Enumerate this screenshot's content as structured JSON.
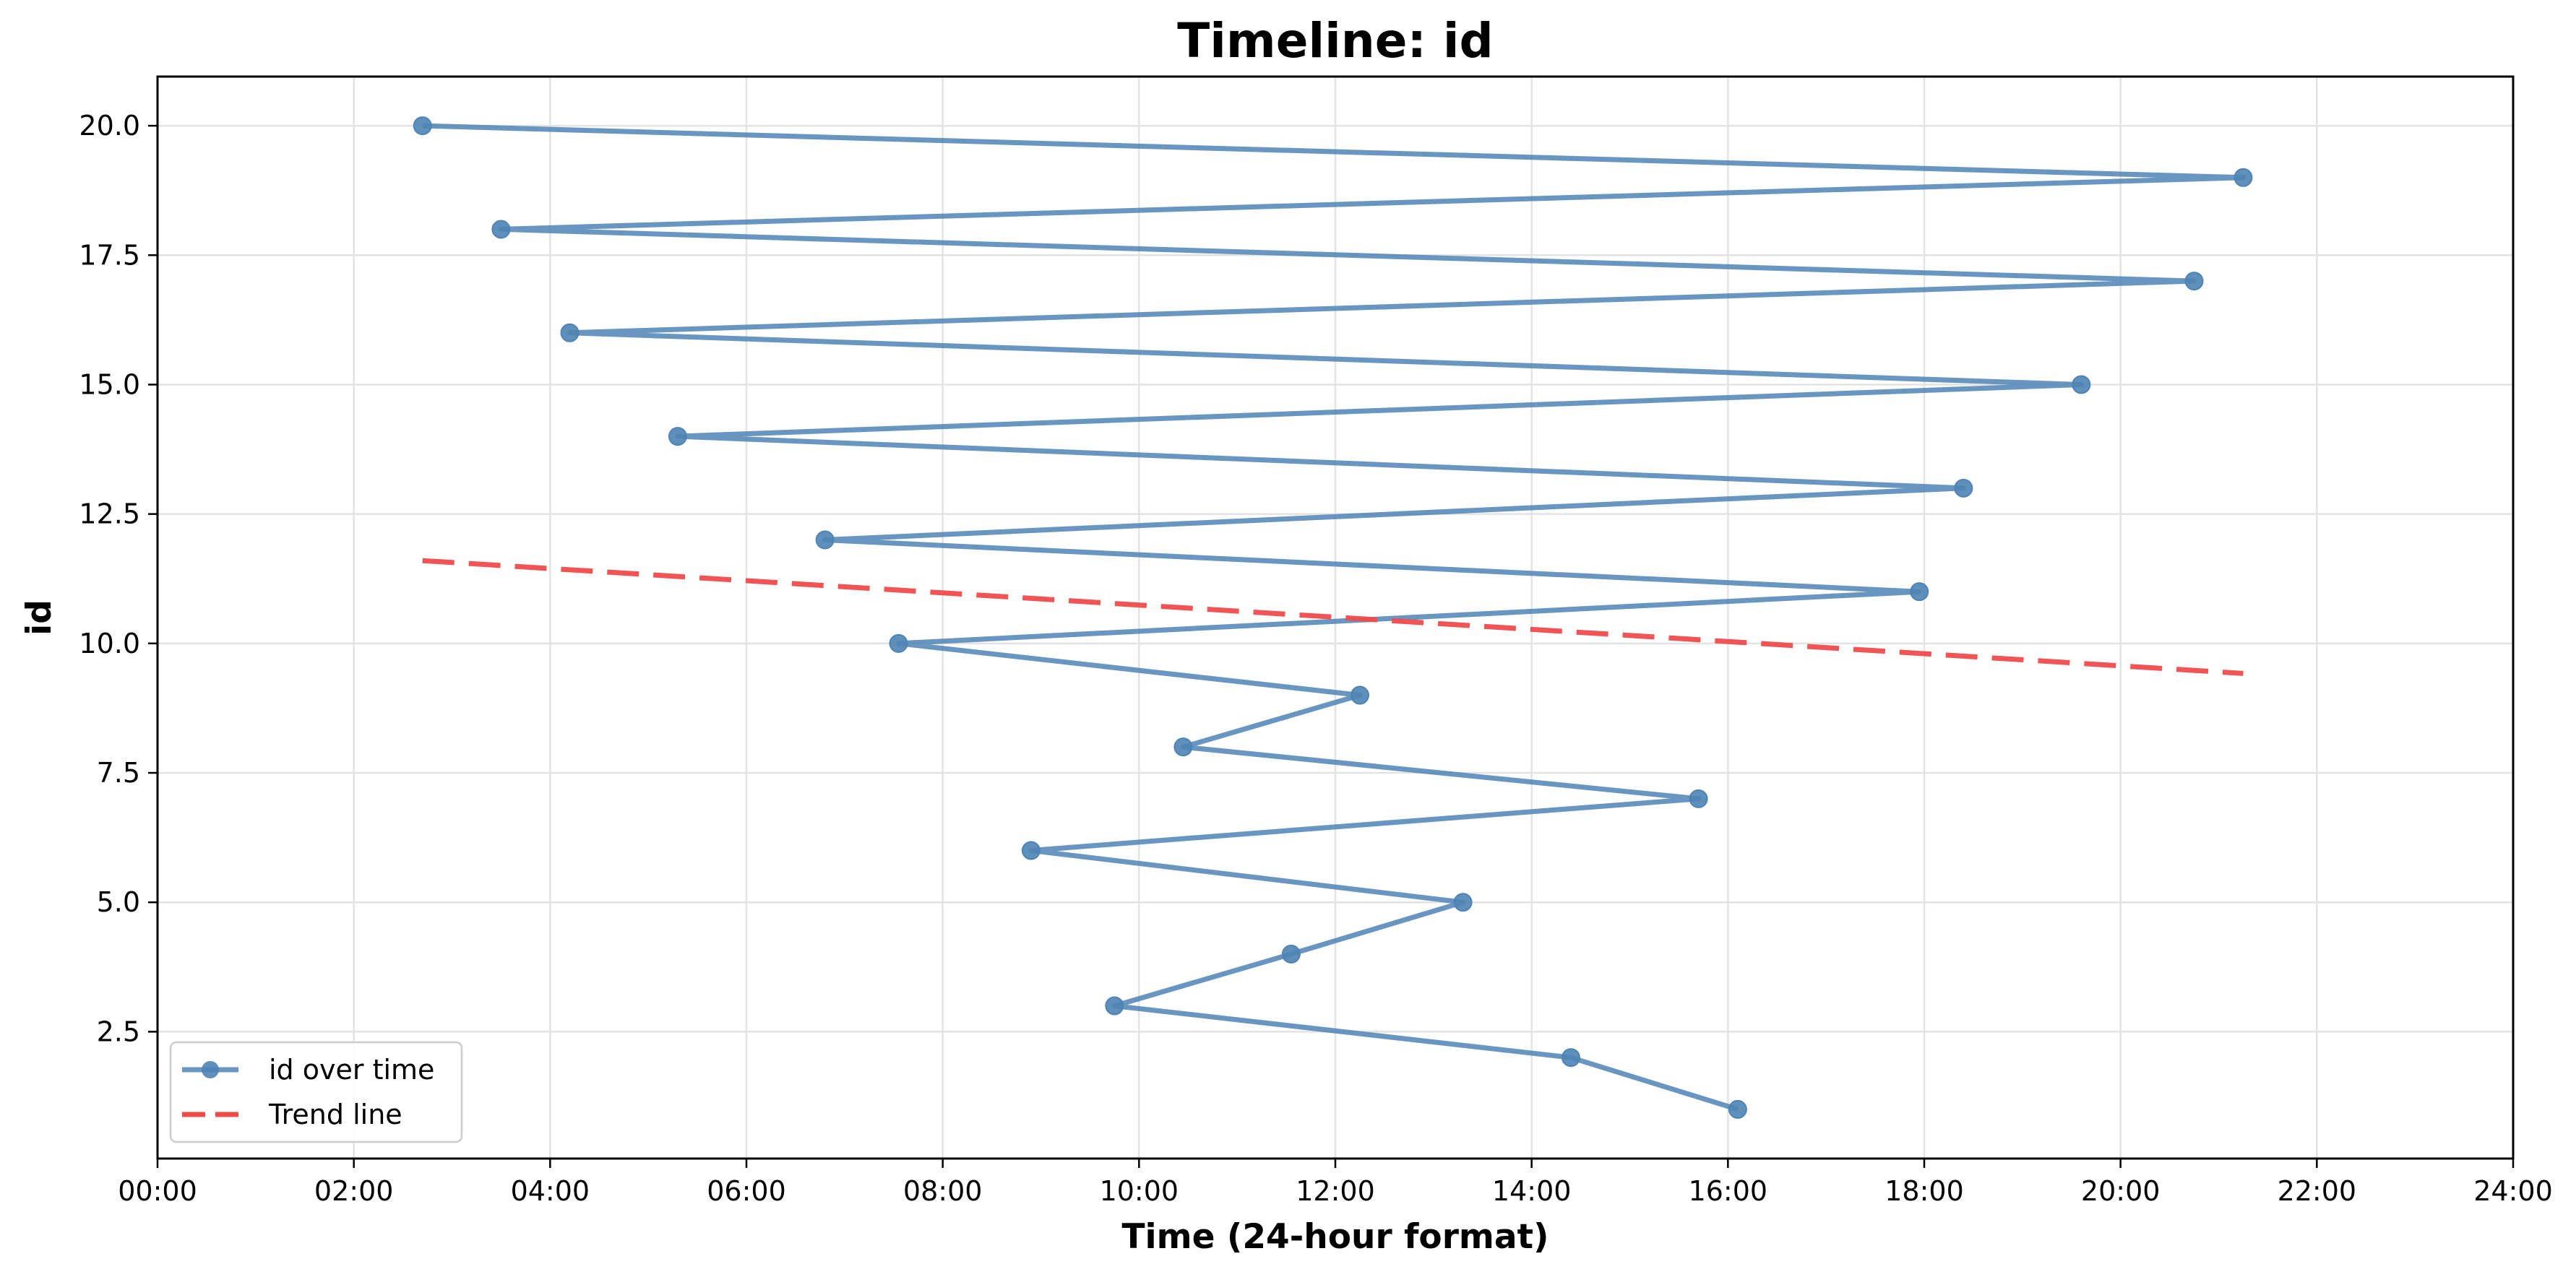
{
  "chart_data": {
    "type": "line",
    "title": "Timeline: id",
    "xlabel": "Time (24-hour format)",
    "ylabel": "id",
    "xlim": [
      0,
      24
    ],
    "ylim": [
      0.05,
      20.95
    ],
    "x_tick_values": [
      0,
      2,
      4,
      6,
      8,
      10,
      12,
      14,
      16,
      18,
      20,
      22,
      24
    ],
    "x_tick_labels": [
      "00:00",
      "02:00",
      "04:00",
      "06:00",
      "08:00",
      "10:00",
      "12:00",
      "14:00",
      "16:00",
      "18:00",
      "20:00",
      "22:00",
      "24:00"
    ],
    "y_tick_values": [
      2.5,
      5.0,
      7.5,
      10.0,
      12.5,
      15.0,
      17.5,
      20.0
    ],
    "y_tick_labels": [
      "2.5",
      "5.0",
      "7.5",
      "10.0",
      "12.5",
      "15.0",
      "17.5",
      "20.0"
    ],
    "grid": true,
    "legend_position": "lower-left",
    "series": [
      {
        "name": "id over time",
        "style": "line-with-markers",
        "color": "#4e84b5",
        "x": [
          "16:06",
          "14:24",
          "09:45",
          "11:33",
          "13:18",
          "08:54",
          "15:42",
          "10:27",
          "12:15",
          "07:33",
          "17:57",
          "06:48",
          "18:24",
          "05:18",
          "19:36",
          "04:12",
          "20:45",
          "03:30",
          "21:15",
          "02:42"
        ],
        "y": [
          1,
          2,
          3,
          4,
          5,
          6,
          7,
          8,
          9,
          10,
          11,
          12,
          13,
          14,
          15,
          16,
          17,
          18,
          19,
          20
        ]
      },
      {
        "name": "Trend line",
        "style": "dashed",
        "color": "#f04b4b",
        "x": [
          "02:42",
          "21:15"
        ],
        "y": [
          11.6,
          9.42
        ]
      }
    ]
  }
}
